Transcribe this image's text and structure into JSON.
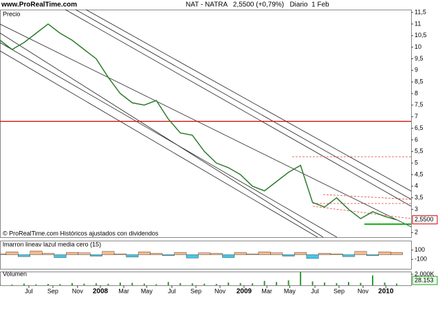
{
  "site": "www.ProRealTime.com",
  "header": "NAT - NATRA   2,5500 (+0,79%)   Diario  1 Feb",
  "copyright": "© ProRealTime.com Históricos ajustados con dividendos",
  "chart_data": [
    {
      "type": "line",
      "title": "Precio",
      "color": "#2a7a2a",
      "x": [
        0,
        1,
        2,
        3,
        4,
        5,
        6,
        7,
        8,
        9,
        10,
        11,
        12,
        13,
        14,
        15,
        16,
        17,
        18,
        19,
        20,
        21,
        22,
        23,
        24,
        25,
        26,
        27,
        28,
        29,
        30,
        31,
        32,
        33
      ],
      "values": [
        10.3,
        9.9,
        10.2,
        10.6,
        11.0,
        10.6,
        10.3,
        9.9,
        9.5,
        8.7,
        8.0,
        7.6,
        7.5,
        7.7,
        6.9,
        6.3,
        6.2,
        5.5,
        5.0,
        4.8,
        4.5,
        4.0,
        3.8,
        4.2,
        4.6,
        4.9,
        3.3,
        3.1,
        3.5,
        3.0,
        2.6,
        2.9,
        2.7,
        2.55
      ],
      "last": 2.55,
      "last_label": "2,5500",
      "hline": 6.8,
      "hline_color": "#d00000",
      "xlim": [
        0,
        34.2
      ],
      "xticks": [
        {
          "value": 2.4,
          "label": "Jul"
        },
        {
          "value": 4.4,
          "label": "Sep"
        },
        {
          "value": 6.45,
          "label": "Nov"
        },
        {
          "value": 8.35,
          "label": "2008"
        },
        {
          "value": 10.3,
          "label": "Mar"
        },
        {
          "value": 12.2,
          "label": "May"
        },
        {
          "value": 14.3,
          "label": "Jul"
        },
        {
          "value": 16.3,
          "label": "Sep"
        },
        {
          "value": 18.3,
          "label": "Nov"
        },
        {
          "value": 20.3,
          "label": "2009"
        },
        {
          "value": 22.2,
          "label": "Mar"
        },
        {
          "value": 24.1,
          "label": "May"
        },
        {
          "value": 26.2,
          "label": "Jul"
        },
        {
          "value": 28.2,
          "label": "Sep"
        },
        {
          "value": 30.2,
          "label": "Nov"
        },
        {
          "value": 32.1,
          "label": "2010"
        }
      ],
      "ylim": [
        1.8,
        11.62
      ],
      "yticks": [
        {
          "value": 11.5,
          "label": "11,5"
        },
        11,
        {
          "value": 10.5,
          "label": "10,5"
        },
        10,
        {
          "value": 9.5,
          "label": "9,5"
        },
        9,
        {
          "value": 8.5,
          "label": "8,5"
        },
        8,
        {
          "value": 7.5,
          "label": "7,5"
        },
        7,
        {
          "value": 6.5,
          "label": "6,5"
        },
        6,
        {
          "value": 5.5,
          "label": "5,5"
        },
        5,
        {
          "value": 4.5,
          "label": "4,5"
        },
        4,
        {
          "value": 3.5,
          "label": "3,5"
        },
        3,
        2
      ]
    },
    {
      "type": "area",
      "title": "lmarron lineav lazul media cero (15)",
      "color": "#f5b98a",
      "x": [
        0,
        1,
        2,
        3,
        4,
        5,
        6,
        7,
        8,
        9,
        10,
        11,
        12,
        13,
        14,
        15,
        16,
        17,
        18,
        19,
        20,
        21,
        22,
        23,
        24,
        25,
        26,
        27,
        28,
        29,
        30,
        31,
        32,
        33
      ],
      "values": [
        20,
        60,
        -40,
        80,
        30,
        -60,
        50,
        40,
        -30,
        70,
        20,
        -50,
        60,
        30,
        -20,
        50,
        -70,
        40,
        30,
        -60,
        50,
        20,
        60,
        40,
        -30,
        50,
        -80,
        30,
        20,
        -40,
        70,
        -20,
        60,
        50
      ],
      "xlim": [
        0,
        34.2
      ],
      "ylim": [
        -300,
        300
      ],
      "yticks": [
        100,
        -100
      ]
    },
    {
      "type": "bar",
      "title": "Volumen",
      "color": "#2a9a2a",
      "x": [
        0,
        1,
        2,
        3,
        4,
        5,
        6,
        7,
        8,
        9,
        10,
        11,
        12,
        13,
        14,
        15,
        16,
        17,
        18,
        19,
        20,
        21,
        22,
        23,
        24,
        25,
        26,
        27,
        28,
        29,
        30,
        31,
        32,
        33
      ],
      "values": [
        200,
        150,
        300,
        180,
        250,
        220,
        400,
        300,
        350,
        280,
        500,
        450,
        300,
        200,
        600,
        400,
        350,
        300,
        250,
        500,
        400,
        350,
        800,
        600,
        900,
        2400,
        700,
        500,
        400,
        600,
        450,
        1800,
        500,
        300
      ],
      "last_label": "28.153",
      "xlim": [
        0,
        34.2
      ],
      "ylim": [
        0,
        2500
      ],
      "yticks": [
        {
          "value": 2000,
          "label": "2.000K"
        }
      ]
    }
  ]
}
